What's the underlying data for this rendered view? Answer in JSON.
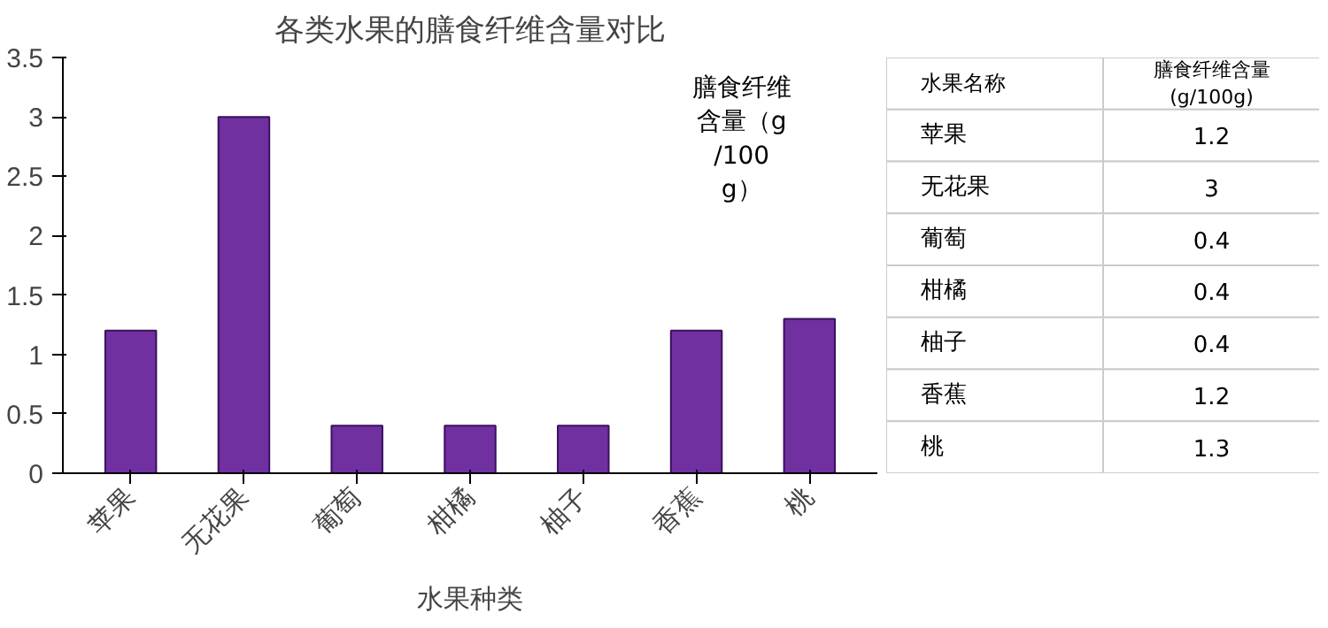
{
  "chart_data": [
    {
      "type": "bar",
      "title": "各类水果的膳食纤维含量对比",
      "xlabel": "水果种类",
      "ylabel": "膳食纤维含量（g/100g）",
      "categories": [
        "苹果",
        "无花果",
        "葡萄",
        "柑橘",
        "柚子",
        "香蕉",
        "桃"
      ],
      "values": [
        1.2,
        3,
        0.4,
        0.4,
        0.4,
        1.2,
        1.3
      ],
      "color": "#7030a0",
      "ylim": [
        0,
        3.5
      ],
      "yticks": [
        0,
        0.5,
        1,
        1.5,
        2,
        2.5,
        3,
        3.5
      ],
      "grid": false
    },
    {
      "type": "other",
      "annotations": [
        "水果名称",
        "膳食纤维含量(g/100g)"
      ],
      "categories": [
        "苹果",
        "无花果",
        "葡萄",
        "柑橘",
        "柚子",
        "香蕉",
        "桃"
      ],
      "value_labels": [
        "1.2",
        "3",
        "0.4",
        "0.4",
        "0.4",
        "1.2",
        "1.3"
      ]
    }
  ]
}
